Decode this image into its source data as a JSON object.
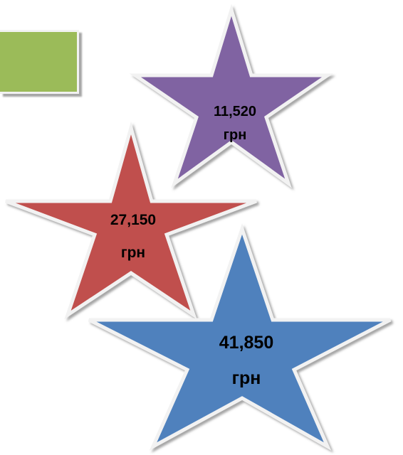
{
  "stars": {
    "purple": {
      "amount": "11,520",
      "unit": "грн",
      "color": "#8064a2"
    },
    "red": {
      "amount": "27,150",
      "unit": "грн",
      "color": "#c0504d"
    },
    "blue": {
      "amount": "41,850",
      "unit": "грн",
      "color": "#4f81bd"
    }
  },
  "box": {
    "color": "#9bbb59"
  }
}
